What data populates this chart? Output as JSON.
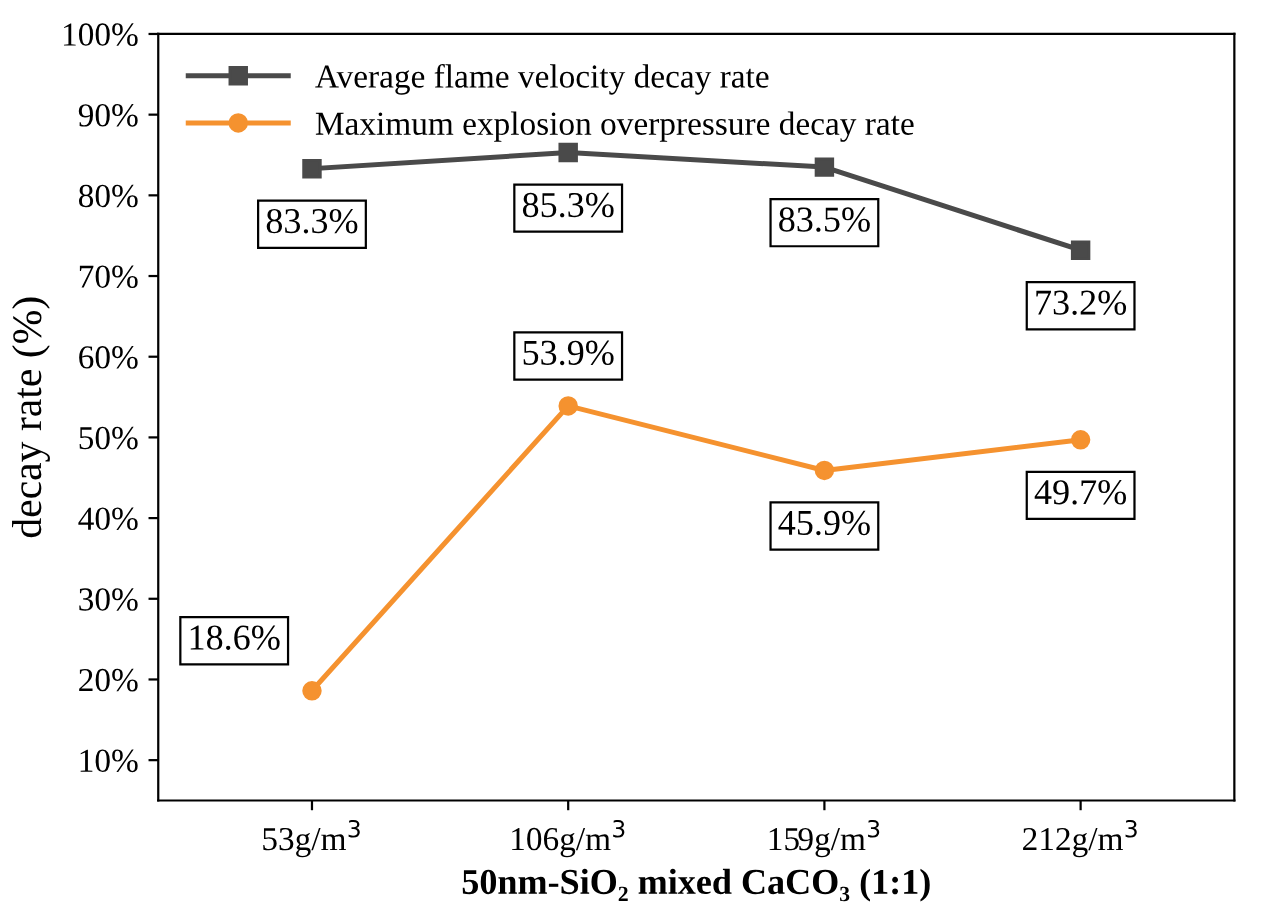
{
  "chart_data": {
    "type": "line",
    "xlabel": "50nm-SiO₂ mixed CaCO₃ (1:1)",
    "ylabel": "decay rate (%)",
    "categories": [
      "53g/m$^{3}$",
      "106g/m$^{3}$",
      "159g/m$^{3}$",
      "212g/m$^{3}$"
    ],
    "series": [
      {
        "name": "Average flame velocity decay rate",
        "color": "#4a4a4a",
        "marker": "square",
        "values": [
          83.3,
          85.3,
          83.5,
          73.2
        ],
        "value_labels": [
          "83.3%",
          "85.3%",
          "83.5%",
          "73.2%"
        ]
      },
      {
        "name": "Maximum explosion overpressure decay rate",
        "color": "#f5922f",
        "marker": "circle",
        "values": [
          18.6,
          53.9,
          45.9,
          49.7
        ],
        "value_labels": [
          "18.6%",
          "53.9%",
          "45.9%",
          "49.7%"
        ]
      }
    ],
    "ylim": [
      5,
      100
    ],
    "yticks": [
      {
        "value": 10,
        "label": "10%"
      },
      {
        "value": 20,
        "label": "20%"
      },
      {
        "value": 30,
        "label": "30%"
      },
      {
        "value": 40,
        "label": "40%"
      },
      {
        "value": 50,
        "label": "50%"
      },
      {
        "value": 60,
        "label": "60%"
      },
      {
        "value": 70,
        "label": "70%"
      },
      {
        "value": 80,
        "label": "80%"
      },
      {
        "value": 90,
        "label": "90%"
      },
      {
        "value": 100,
        "label": "100%"
      }
    ],
    "legend": "top left",
    "grid": false,
    "line_style": "solid"
  }
}
